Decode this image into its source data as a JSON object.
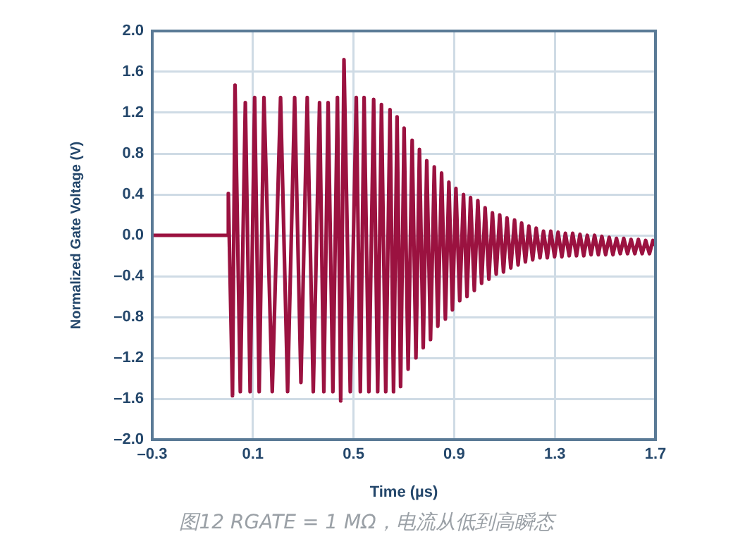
{
  "chart_data": {
    "type": "line",
    "xlabel": "Time (µs)",
    "ylabel": "Normalized Gate Voltage (V)",
    "annotations": [
      "图12 RGATE = 1 MΩ，电流从低到高瞬态"
    ],
    "xlim": [
      -0.3,
      1.7
    ],
    "xticks": [
      {
        "value": -0.3,
        "label": "–0.3"
      },
      0.1,
      0.5,
      0.9,
      1.3,
      1.7
    ],
    "ylim": [
      -2,
      2
    ],
    "yticks": [
      {
        "value": -2,
        "label": "–2.0"
      },
      {
        "value": -1.6,
        "label": "–1.6"
      },
      {
        "value": -1.2,
        "label": "–1.2"
      },
      {
        "value": -0.8,
        "label": "–0.8"
      },
      {
        "value": -0.4,
        "label": "–0.4"
      },
      {
        "value": 0,
        "label": "0.0"
      },
      {
        "value": 0.4,
        "label": "0.4"
      },
      {
        "value": 0.8,
        "label": "0.8"
      },
      {
        "value": 1.2,
        "label": "1.2"
      },
      {
        "value": 1.6,
        "label": "1.6"
      },
      {
        "value": 2,
        "label": "2.0"
      }
    ],
    "grid": true,
    "legend": false,
    "marker": "none",
    "line_style": "solid",
    "series": [
      {
        "color": "#9b1240",
        "x": [
          -0.3,
          0.0,
          0.0025,
          0.019,
          0.029,
          0.05,
          0.07,
          0.089,
          0.107,
          0.125,
          0.144,
          0.177,
          0.21,
          0.238,
          0.266,
          0.291,
          0.316,
          0.34,
          0.365,
          0.382,
          0.399,
          0.418,
          0.436,
          0.449,
          0.462,
          0.487,
          0.511,
          0.527,
          0.542,
          0.561,
          0.58,
          0.596,
          0.611,
          0.628,
          0.645,
          0.659,
          0.673,
          0.687,
          0.701,
          0.717,
          0.733,
          0.748,
          0.762,
          0.777,
          0.791,
          0.806,
          0.821,
          0.835,
          0.85,
          0.865,
          0.879,
          0.893,
          0.907,
          0.922,
          0.937,
          0.951,
          0.965,
          0.98,
          0.994,
          1.009,
          1.023,
          1.038,
          1.052,
          1.067,
          1.081,
          1.096,
          1.11,
          1.125,
          1.14,
          1.154,
          1.168,
          1.183,
          1.197,
          1.212,
          1.226,
          1.241,
          1.255,
          1.27,
          1.284,
          1.299,
          1.313,
          1.328,
          1.342,
          1.357,
          1.371,
          1.386,
          1.4,
          1.415,
          1.429,
          1.444,
          1.458,
          1.473,
          1.487,
          1.502,
          1.516,
          1.531,
          1.545,
          1.56,
          1.574,
          1.589,
          1.603,
          1.618,
          1.632,
          1.647,
          1.661,
          1.676,
          1.69,
          1.7
        ],
        "values": [
          0,
          0,
          0.41,
          -1.57,
          1.47,
          -1.53,
          1.3,
          -1.53,
          1.35,
          -1.53,
          1.35,
          -1.53,
          1.35,
          -1.53,
          1.35,
          -1.44,
          1.35,
          -1.53,
          1.3,
          -1.53,
          1.3,
          -1.53,
          1.35,
          -1.62,
          1.72,
          -1.53,
          1.35,
          -1.53,
          1.35,
          -1.53,
          1.33,
          -1.53,
          1.28,
          -1.53,
          1.23,
          -1.53,
          1.16,
          -1.48,
          1.05,
          -1.31,
          0.93,
          -1.2,
          0.84,
          -1.1,
          0.73,
          -1.02,
          0.67,
          -0.89,
          0.61,
          -0.82,
          0.52,
          -0.73,
          0.46,
          -0.64,
          0.4,
          -0.6,
          0.37,
          -0.54,
          0.34,
          -0.47,
          0.27,
          -0.43,
          0.22,
          -0.38,
          0.2,
          -0.36,
          0.17,
          -0.32,
          0.15,
          -0.29,
          0.12,
          -0.26,
          0.09,
          -0.24,
          0.07,
          -0.22,
          0.04,
          -0.22,
          0.04,
          -0.21,
          0.03,
          -0.21,
          0.02,
          -0.2,
          0.02,
          -0.2,
          0.01,
          -0.2,
          0,
          -0.19,
          0,
          -0.19,
          -0.01,
          -0.19,
          -0.02,
          -0.19,
          -0.03,
          -0.18,
          -0.03,
          -0.18,
          -0.04,
          -0.18,
          -0.04,
          -0.18,
          -0.05,
          -0.18,
          -0.05,
          -0.1
        ]
      }
    ]
  }
}
